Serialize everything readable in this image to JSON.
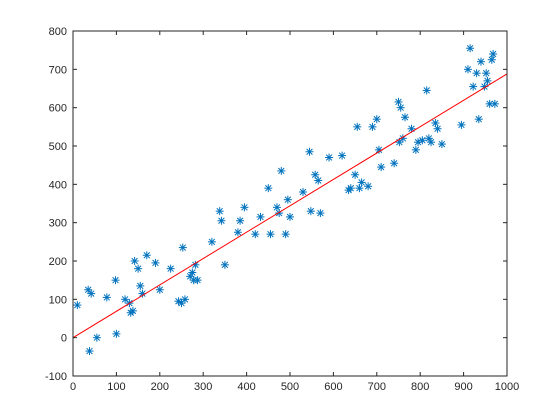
{
  "chart_data": {
    "type": "scatter",
    "title": "",
    "xlabel": "",
    "ylabel": "",
    "xlim": [
      0,
      1000
    ],
    "ylim": [
      -100,
      800
    ],
    "xticks": [
      0,
      100,
      200,
      300,
      400,
      500,
      600,
      700,
      800,
      900,
      1000
    ],
    "yticks": [
      -100,
      0,
      100,
      200,
      300,
      400,
      500,
      600,
      700,
      800
    ],
    "grid": false,
    "legend": "none",
    "series": [
      {
        "kind": "scatter",
        "marker": "asterisk",
        "color": "#0072BD",
        "x": [
          10,
          35,
          38,
          42,
          55,
          78,
          98,
          100,
          120,
          130,
          133,
          138,
          142,
          150,
          155,
          160,
          170,
          190,
          200,
          225,
          243,
          250,
          253,
          258,
          270,
          275,
          278,
          282,
          287,
          320,
          338,
          342,
          350,
          380,
          385,
          395,
          420,
          432,
          450,
          455,
          470,
          475,
          480,
          490,
          495,
          500,
          530,
          545,
          548,
          558,
          565,
          570,
          590,
          620,
          635,
          640,
          650,
          655,
          660,
          665,
          680,
          690,
          700,
          705,
          710,
          740,
          750,
          752,
          755,
          760,
          765,
          780,
          790,
          795,
          805,
          815,
          820,
          825,
          835,
          840,
          850,
          895,
          910,
          915,
          922,
          930,
          935,
          940,
          948,
          952,
          955,
          960,
          965,
          968,
          972
        ],
        "y": [
          85,
          125,
          -35,
          115,
          0,
          105,
          150,
          10,
          100,
          90,
          65,
          70,
          200,
          180,
          135,
          115,
          215,
          195,
          125,
          180,
          95,
          90,
          235,
          100,
          160,
          170,
          150,
          190,
          150,
          250,
          330,
          305,
          190,
          275,
          305,
          340,
          270,
          315,
          390,
          270,
          340,
          325,
          435,
          270,
          360,
          315,
          380,
          485,
          330,
          425,
          410,
          325,
          470,
          475,
          385,
          390,
          425,
          550,
          390,
          405,
          395,
          550,
          570,
          490,
          445,
          455,
          615,
          510,
          600,
          520,
          575,
          545,
          490,
          510,
          515,
          645,
          520,
          510,
          560,
          545,
          505,
          555,
          700,
          755,
          655,
          690,
          570,
          720,
          655,
          690,
          670,
          610,
          725,
          740,
          610
        ]
      },
      {
        "kind": "line",
        "color": "#FF0000",
        "x": [
          0,
          1000
        ],
        "y": [
          0,
          688
        ]
      }
    ]
  }
}
